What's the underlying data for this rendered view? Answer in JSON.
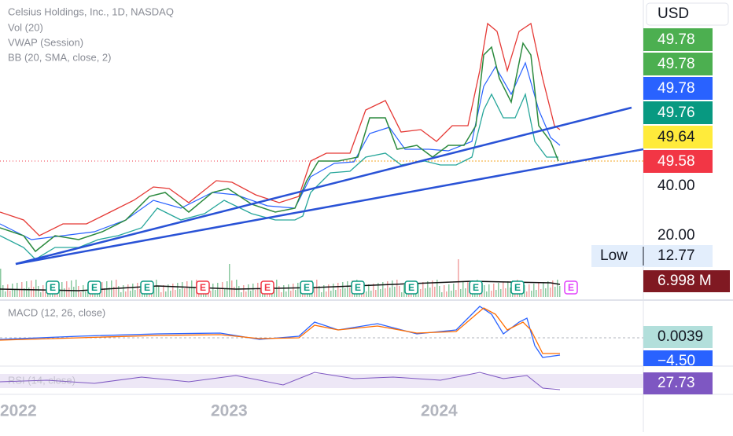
{
  "header": {
    "symbol": "Celsius Holdings, Inc., 1D, NASDAQ",
    "indicators": [
      "Vol (20)",
      "VWAP (Session)",
      "BB (20, SMA, close, 2)"
    ]
  },
  "currency": "USD",
  "price_labels": [
    "49.78",
    "49.78",
    "49.78",
    "49.76",
    "49.64",
    "49.58"
  ],
  "axis_labels": [
    "40.00",
    "20.00"
  ],
  "low": {
    "label": "Low",
    "value": "12.77"
  },
  "volume": "6.998 M",
  "earnings": [
    "E",
    "E",
    "E",
    "E",
    "E",
    "E",
    "E",
    "E",
    "E",
    "E",
    "E"
  ],
  "macd": {
    "title": "MACD (12, 26, close)",
    "values": [
      "0.0039",
      "−4.50"
    ]
  },
  "rsi": {
    "title": "RSI (14, close)",
    "value": "27.73"
  },
  "time_axis": [
    "2022",
    "2023",
    "2024"
  ]
}
